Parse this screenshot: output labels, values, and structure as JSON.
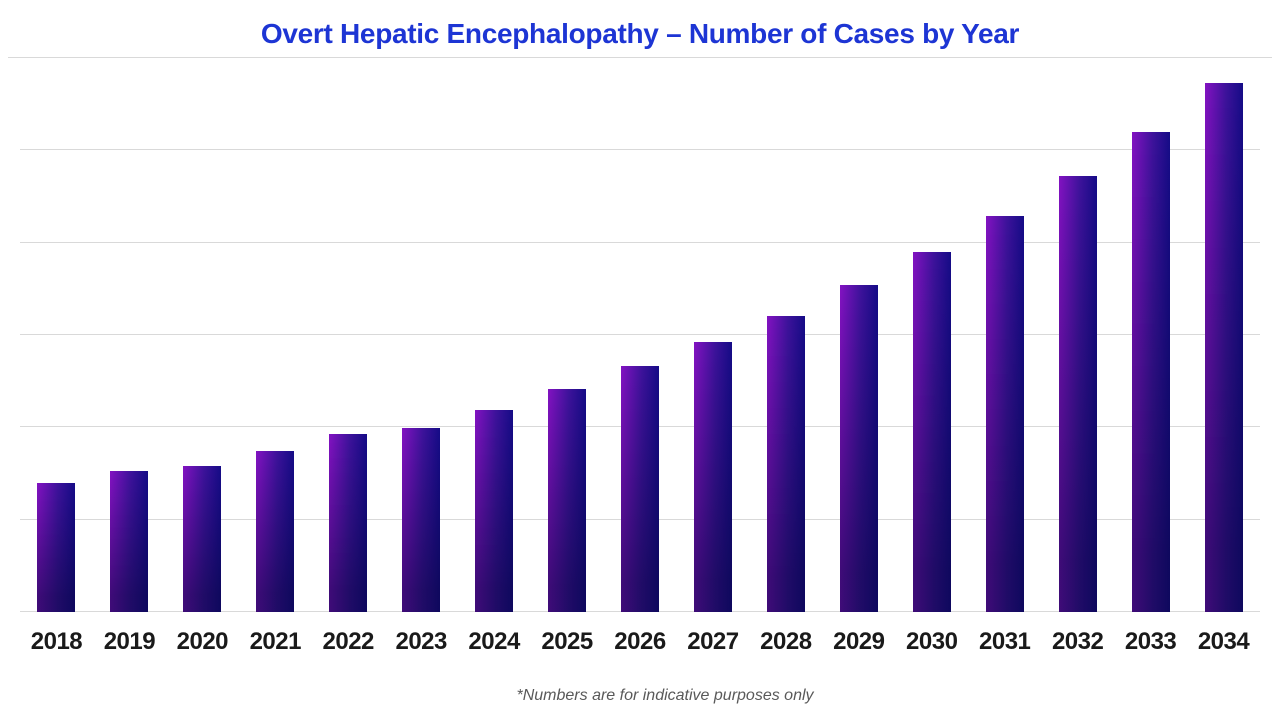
{
  "chart_data": {
    "type": "bar",
    "title": "Overt Hepatic Encephalopathy – Number of Cases by Year",
    "categories": [
      "2018",
      "2019",
      "2020",
      "2021",
      "2022",
      "2023",
      "2024",
      "2025",
      "2026",
      "2027",
      "2028",
      "2029",
      "2030",
      "2031",
      "2032",
      "2033",
      "2034"
    ],
    "values": [
      140,
      153,
      158,
      174,
      193,
      199,
      219,
      241,
      266,
      292,
      321,
      354,
      390,
      429,
      472,
      520,
      573
    ],
    "values_estimated_from_gridlines": true,
    "xlabel": "",
    "ylabel": "",
    "ylim": [
      0,
      600
    ],
    "gridline_step": 100,
    "grid": "horizontal-only",
    "y_axis_labels_visible": false,
    "legend": "none",
    "footnote": "*Numbers are for indicative purposes only"
  },
  "colors": {
    "title": "#1d35d4",
    "axis_label": "#1a1a1a",
    "gridline": "#d9d9d9",
    "footnote": "#595959",
    "bar_gradient_left": "#8312c2",
    "bar_gradient_mid": "#3d129b",
    "bar_gradient_right": "#150b87",
    "bar_shade_overlay": "rgba(8,6,60,0.55)"
  }
}
